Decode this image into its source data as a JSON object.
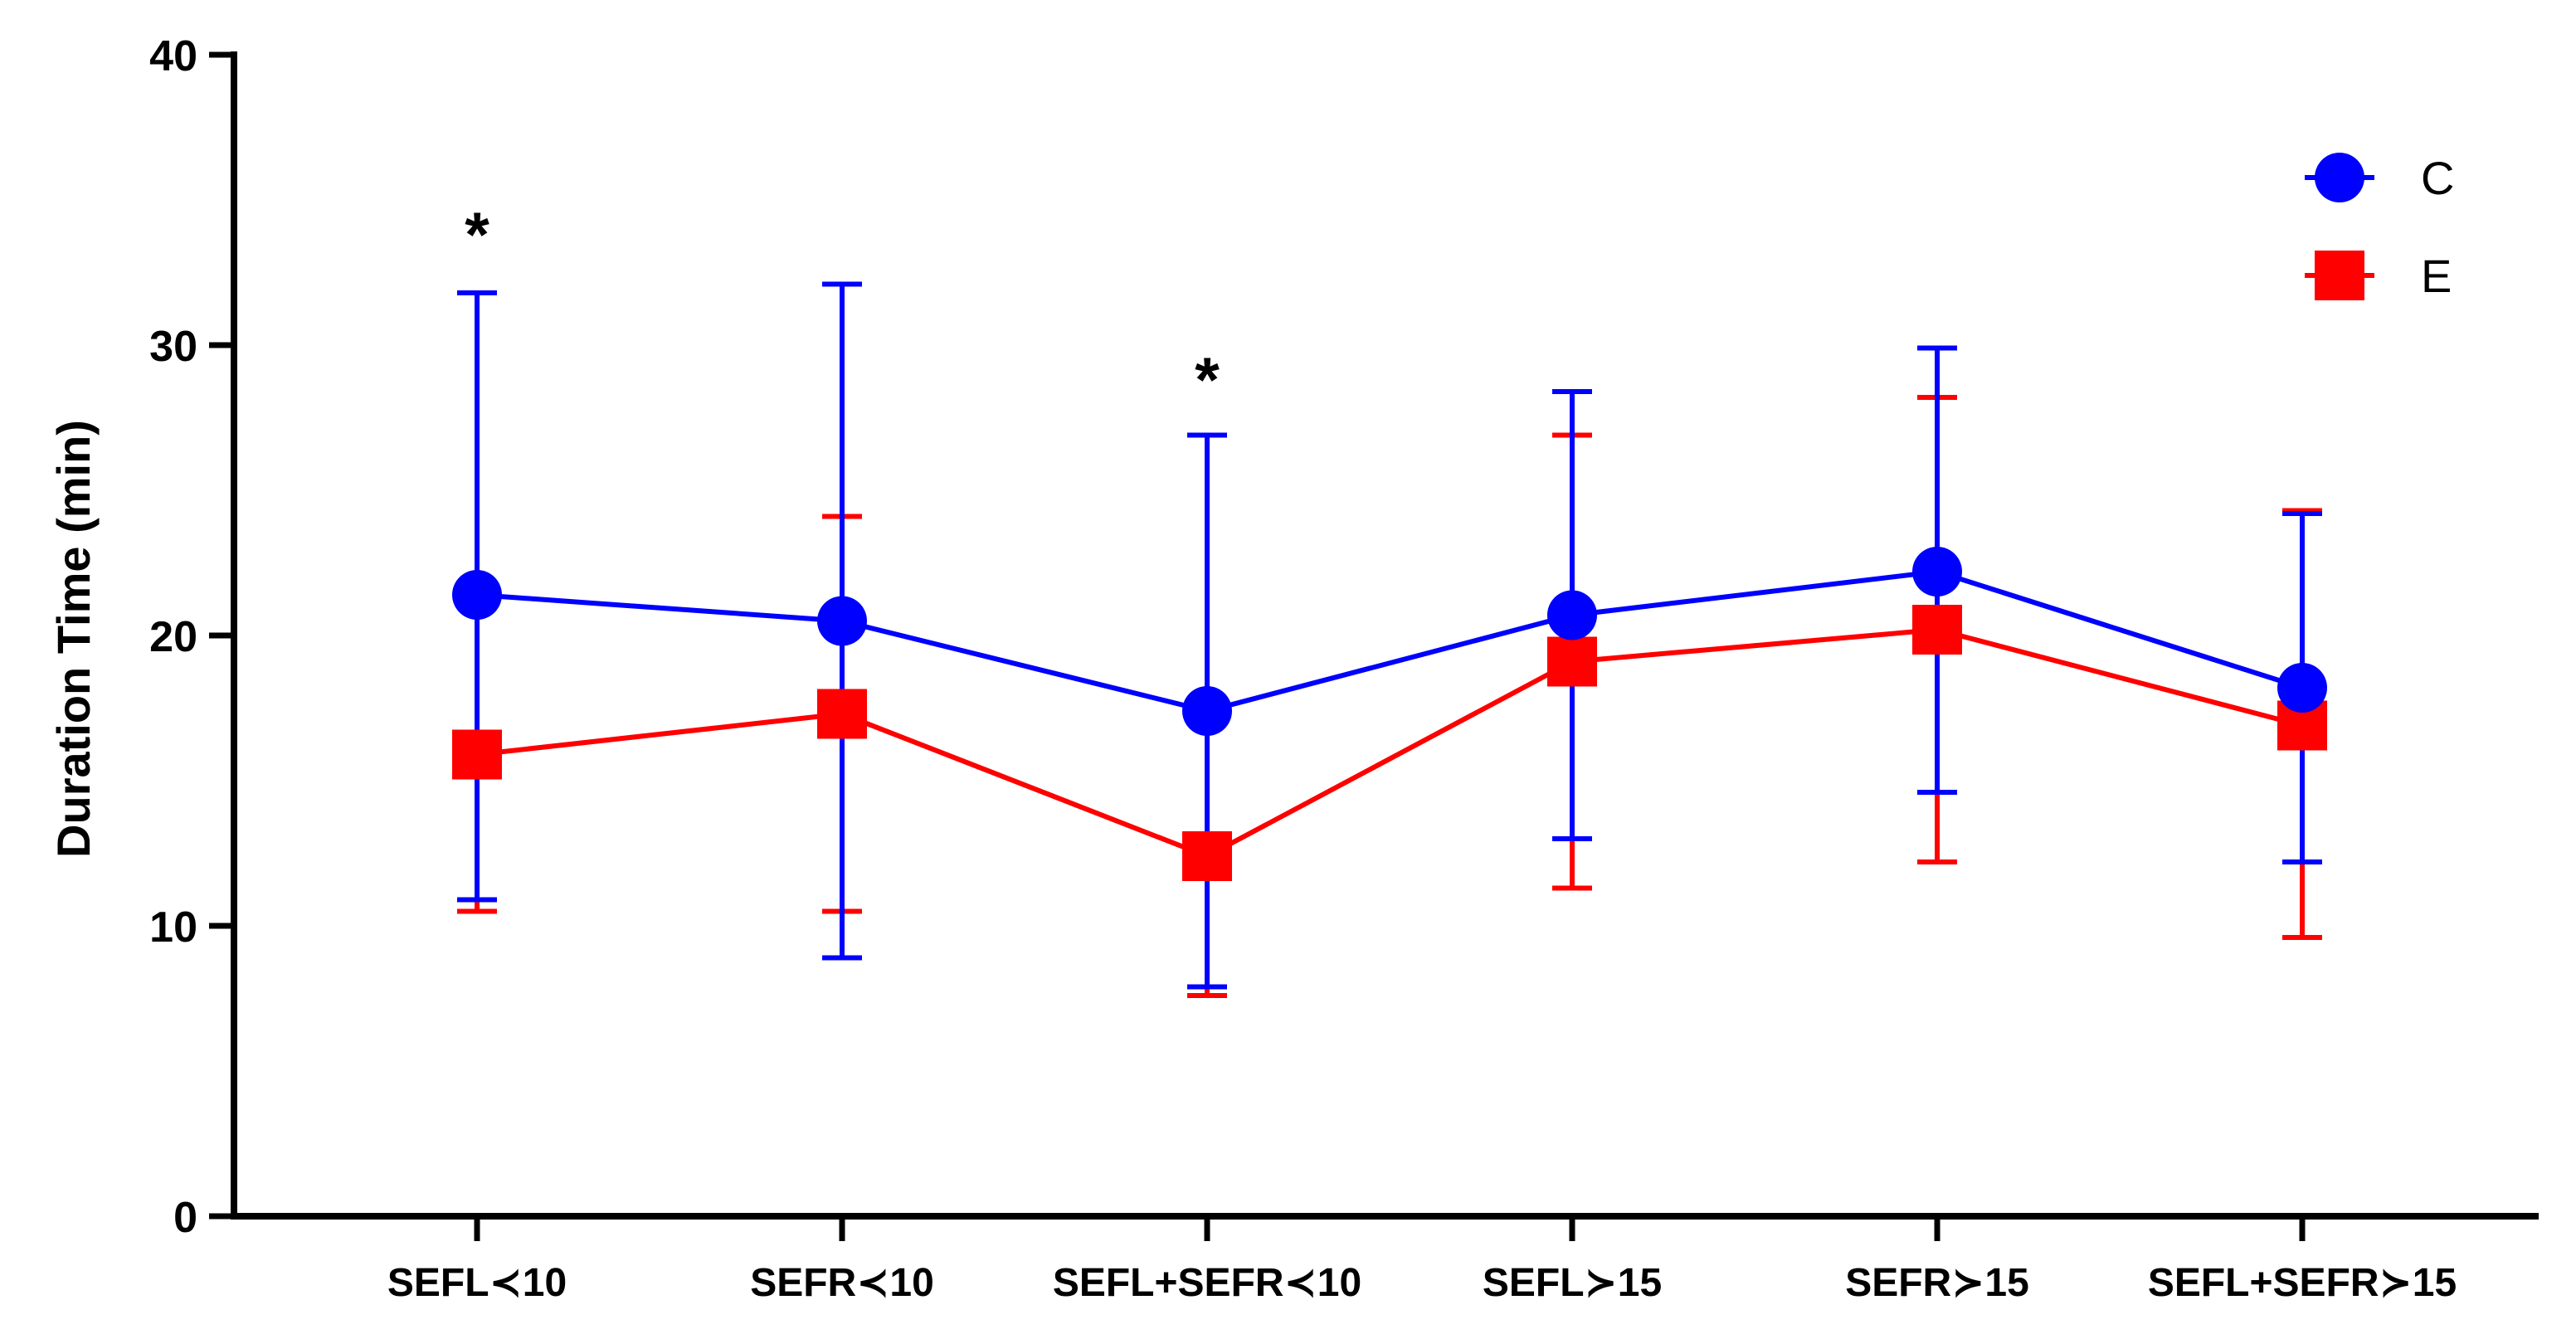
{
  "chart_data": {
    "type": "line",
    "title": "",
    "xlabel": "",
    "ylabel": "Duration Time (min)",
    "ylim": [
      0,
      40
    ],
    "yticks": [
      "0",
      "10",
      "20",
      "30",
      "40"
    ],
    "grid": false,
    "legend_position": "top-right",
    "categories": [
      "SEFL≺10",
      "SEFR≺10",
      "SEFL+SEFR≺10",
      "SEFL≻15",
      "SEFR≻15",
      "SEFL+SEFR≻15"
    ],
    "series": [
      {
        "name": "C",
        "color": "#0000ff",
        "marker": "circle",
        "values": [
          21.4,
          20.5,
          17.4,
          20.7,
          22.2,
          18.2
        ],
        "err_upper": [
          31.8,
          32.1,
          26.9,
          28.4,
          29.9,
          24.2
        ],
        "err_lower": [
          10.9,
          8.9,
          7.9,
          13.0,
          14.6,
          12.2
        ]
      },
      {
        "name": "E",
        "color": "#ff0000",
        "marker": "square",
        "values": [
          15.9,
          17.3,
          12.4,
          19.1,
          20.2,
          16.9
        ],
        "err_upper": [
          21.3,
          24.1,
          17.2,
          26.9,
          28.2,
          24.3
        ],
        "err_lower": [
          10.5,
          10.5,
          7.6,
          11.3,
          12.2,
          9.6
        ]
      }
    ],
    "annotations": [
      {
        "text": "*",
        "category_index": 0,
        "y": 34.2
      },
      {
        "text": "*",
        "category_index": 2,
        "y": 29.2
      }
    ]
  }
}
